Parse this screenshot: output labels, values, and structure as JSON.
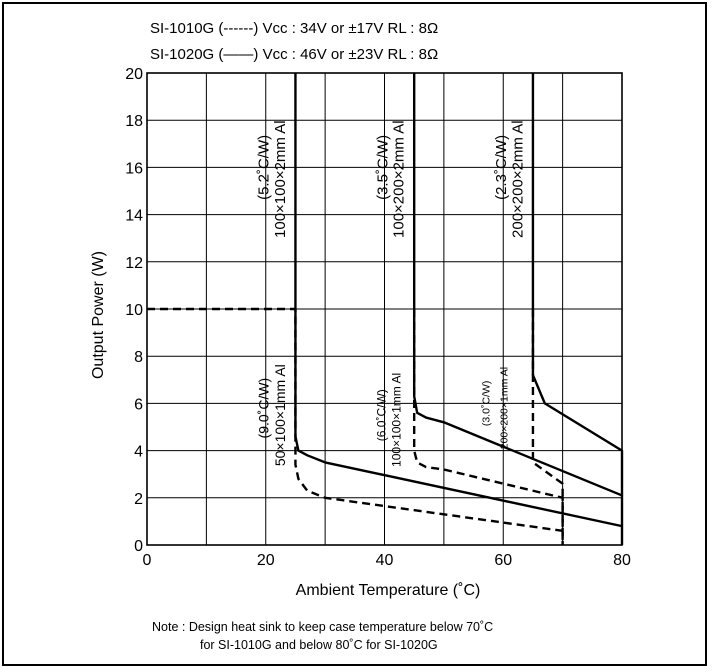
{
  "legend": [
    {
      "model": "SI-1010G",
      "style_symbol": "(------)",
      "condition": "Vcc : 34V or ±17V  RL : 8Ω"
    },
    {
      "model": "SI-1020G",
      "style_symbol": "(——)",
      "condition": "Vcc : 46V or ±23V  RL : 8Ω"
    }
  ],
  "note": {
    "line1": "Note : Design heat sink to keep case temperature below 70˚C",
    "line2": "for SI-1010G and below 80˚C for SI-1020G"
  },
  "chart_data": {
    "type": "line",
    "xlabel": "Ambient Temperature (˚C)",
    "ylabel": "Output Power (W)",
    "xlim": [
      0,
      80
    ],
    "ylim": [
      0,
      20
    ],
    "xticks": [
      0,
      20,
      40,
      60,
      80
    ],
    "yticks": [
      0,
      2,
      4,
      6,
      8,
      10,
      12,
      14,
      16,
      18,
      20
    ],
    "x_grid_step": 10,
    "y_grid_step": 2,
    "grid": true,
    "colors": {
      "line": "#000000",
      "grid": "#000000",
      "background": "#ffffff"
    },
    "series": [
      {
        "name": "SI-1010G",
        "style": "dashed",
        "heatsink": "50×100×1mm Al",
        "thermal_resistance": "9.0°C/W",
        "x": [
          0,
          25,
          25,
          25.5,
          27,
          30,
          70
        ],
        "y": [
          10,
          10,
          3.4,
          2.8,
          2.3,
          2.0,
          0.6
        ]
      },
      {
        "name": "SI-1010G",
        "style": "dashed",
        "heatsink": "100×100×1mm Al",
        "thermal_resistance": "6.0°C/W",
        "x": [
          45,
          45,
          45.5,
          47,
          50,
          70,
          70
        ],
        "y": [
          10,
          4.0,
          3.5,
          3.3,
          3.2,
          2.0,
          0
        ]
      },
      {
        "name": "SI-1010G",
        "style": "dashed",
        "heatsink": "200×200×1mm Al",
        "thermal_resistance": "3.0°C/W",
        "x": [
          65,
          65,
          70,
          70
        ],
        "y": [
          10,
          3.5,
          2.6,
          0
        ]
      },
      {
        "name": "SI-1020G",
        "style": "solid",
        "heatsink": "50×100×1mm Al / 100×100×2mm Al",
        "thermal_resistance": "9.0°C/W / 5.2°C/W",
        "x": [
          25,
          25,
          25.5,
          27,
          30,
          80
        ],
        "y": [
          20,
          4.6,
          4.0,
          3.8,
          3.5,
          0.8
        ]
      },
      {
        "name": "SI-1020G",
        "style": "solid",
        "heatsink": "100×100×1mm Al / 100×200×2mm Al",
        "thermal_resistance": "6.0°C/W / 3.5°C/W",
        "x": [
          45,
          45,
          45.5,
          47,
          50,
          80
        ],
        "y": [
          20,
          6.3,
          5.6,
          5.4,
          5.2,
          2.1
        ]
      },
      {
        "name": "SI-1020G",
        "style": "solid",
        "heatsink": "200×200×1mm Al / 200×200×2mm Al",
        "thermal_resistance": "3.0°C/W / 2.3°C/W",
        "x": [
          65,
          65,
          66,
          67,
          80,
          80
        ],
        "y": [
          20,
          7.2,
          6.6,
          6.0,
          4.0,
          0
        ]
      }
    ],
    "annotations": [
      {
        "id": "r1",
        "text": "(5.2˚C/W)",
        "x": 20.5,
        "y": 16,
        "size": 15
      },
      {
        "id": "h1",
        "text": "100×100×2mm  Al",
        "x": 23.2,
        "y": 15.5,
        "size": 15
      },
      {
        "id": "r2",
        "text": "(3.5˚C/W)",
        "x": 40.5,
        "y": 16,
        "size": 15
      },
      {
        "id": "h2",
        "text": "100×200×2mm  Al",
        "x": 43.2,
        "y": 15.5,
        "size": 15
      },
      {
        "id": "r3",
        "text": "(2.3˚C/W)",
        "x": 60.5,
        "y": 16,
        "size": 15
      },
      {
        "id": "h3",
        "text": "200×200×2mm  Al",
        "x": 63.2,
        "y": 15.5,
        "size": 15
      },
      {
        "id": "r4",
        "text": "(9.0˚C/W)",
        "x": 20.5,
        "y": 5.8,
        "size": 14
      },
      {
        "id": "h4",
        "text": "50×100×1mm  Al",
        "x": 23.2,
        "y": 5.5,
        "size": 14
      },
      {
        "id": "r5",
        "text": "(6.0˚C/W)",
        "x": 40.2,
        "y": 5.5,
        "size": 12
      },
      {
        "id": "h5",
        "text": "100×100×1mm  Al",
        "x": 42.7,
        "y": 5.3,
        "size": 12
      },
      {
        "id": "r6",
        "text": "(3.0˚C/W)",
        "x": 57.7,
        "y": 6.0,
        "size": 10.5
      },
      {
        "id": "h6",
        "text": "200×200×1mm Al",
        "x": 60.7,
        "y": 5.8,
        "size": 10.5
      }
    ]
  }
}
